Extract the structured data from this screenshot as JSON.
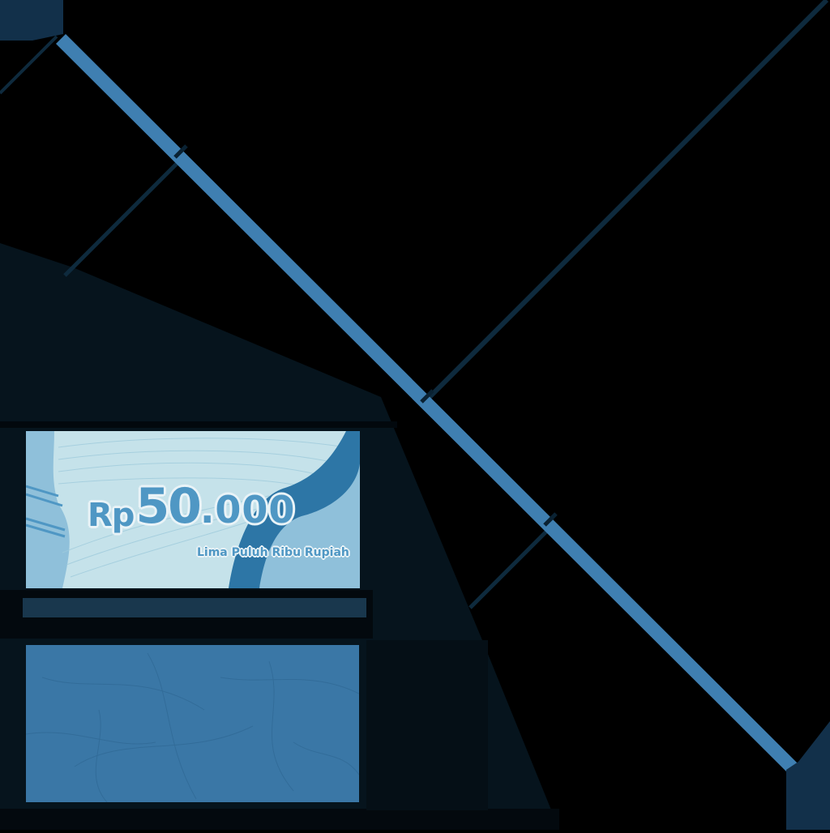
{
  "banknote": {
    "currency": "Rp",
    "amount_main": "50",
    "amount_decimals": ".000",
    "amount_words": "Lima Puluh Ribu Rupiah"
  },
  "colors": {
    "background": "#000000",
    "blue_bar": "#3f7fb1",
    "note_light": "#8fc0da",
    "note_pale": "#c5e2ea",
    "note_dark": "#2d76a6",
    "note_back": "#3a77a6",
    "panel_dark": "#06141d"
  }
}
